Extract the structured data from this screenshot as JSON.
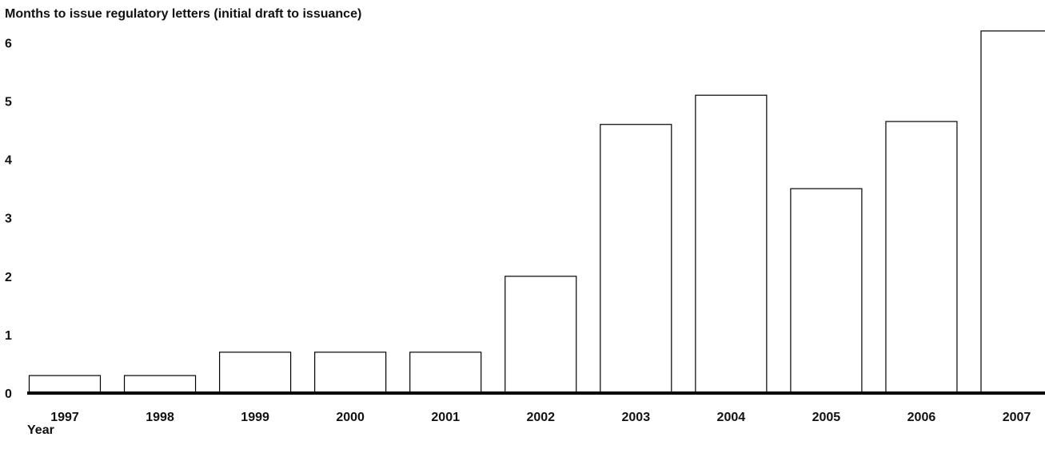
{
  "chart_data": {
    "type": "bar",
    "title": "Months to issue regulatory letters (initial draft to issuance)",
    "xlabel": "Year",
    "ylabel": "",
    "categories": [
      "1997",
      "1998",
      "1999",
      "2000",
      "2001",
      "2002",
      "2003",
      "2004",
      "2005",
      "2006",
      "2007"
    ],
    "values": [
      0.3,
      0.3,
      0.7,
      0.7,
      0.7,
      2.0,
      4.6,
      5.1,
      3.5,
      4.65,
      6.2
    ],
    "yticks": [
      0,
      1,
      2,
      3,
      4,
      5,
      6
    ],
    "ylim": [
      0,
      6.2
    ],
    "grid": false,
    "legend": "none",
    "colors": {
      "bar_fill": "#ffffff",
      "bar_stroke": "#000000",
      "axis": "#000000"
    }
  }
}
